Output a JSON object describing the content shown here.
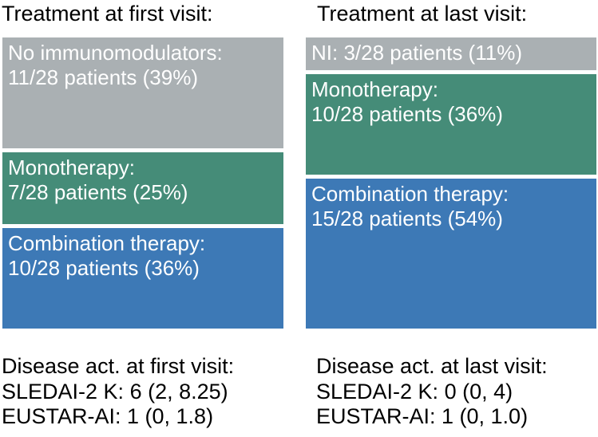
{
  "figure": {
    "columns": [
      {
        "id": "first-visit",
        "heading": "Treatment at first visit:",
        "blocks": [
          {
            "id": "no-immunomodulators-first",
            "color": "gray",
            "count": 11,
            "lines": [
              "No immunomodulators:",
              "11/28 patients (39%)"
            ]
          },
          {
            "id": "monotherapy-first",
            "color": "green",
            "count": 7,
            "lines": [
              "Monotherapy:",
              "7/28 patients (25%)"
            ]
          },
          {
            "id": "combination-therapy-first",
            "color": "blue",
            "count": 10,
            "lines": [
              "Combination therapy:",
              "10/28 patients (36%)"
            ]
          }
        ],
        "footer_lines": [
          "Disease act. at first visit:",
          "SLEDAI-2 K: 6 (2, 8.25)",
          "EUSTAR-AI: 1 (0, 1.8)"
        ]
      },
      {
        "id": "last-visit",
        "heading": "Treatment at last visit:",
        "blocks": [
          {
            "id": "no-immunomodulators-last",
            "color": "gray",
            "count": 3,
            "lines": [
              "NI: 3/28 patients (11%)"
            ]
          },
          {
            "id": "monotherapy-last",
            "color": "green",
            "count": 10,
            "lines": [
              "Monotherapy:",
              "10/28 patients (36%)"
            ]
          },
          {
            "id": "combination-therapy-last",
            "color": "blue",
            "count": 15,
            "lines": [
              "Combination therapy:",
              "15/28 patients (54%)"
            ]
          }
        ],
        "footer_lines": [
          "Disease act. at last visit:",
          "SLEDAI-2 K: 0 (0, 4)",
          "EUSTAR-AI: 1 (0, 1.0)"
        ]
      }
    ]
  },
  "colors": {
    "gray": "#aab0b3",
    "green": "#458c78",
    "blue": "#3d79b6",
    "block_text": "#ffffff",
    "text": "#000000",
    "background": "#ffffff"
  },
  "chart_data": {
    "type": "bar",
    "stacked": true,
    "orientation": "vertical-proportional",
    "unit": "patients",
    "denominator": 28,
    "categories": [
      "No immunomodulators (NI)",
      "Monotherapy",
      "Combination therapy"
    ],
    "series": [
      {
        "name": "Treatment at first visit",
        "counts": [
          11,
          7,
          10
        ],
        "percent": [
          39,
          25,
          36
        ]
      },
      {
        "name": "Treatment at last visit",
        "counts": [
          3,
          10,
          15
        ],
        "percent": [
          11,
          36,
          54
        ]
      }
    ],
    "segment_colors": [
      "#aab0b3",
      "#458c78",
      "#3d79b6"
    ],
    "legend": false,
    "axes": false,
    "annotations": [
      {
        "label": "Disease act. at first visit",
        "SLEDAI-2 K": "6 (2, 8.25)",
        "EUSTAR-AI": "1 (0, 1.8)"
      },
      {
        "label": "Disease act. at last visit",
        "SLEDAI-2 K": "0 (0, 4)",
        "EUSTAR-AI": "1 (0, 1.0)"
      }
    ]
  }
}
